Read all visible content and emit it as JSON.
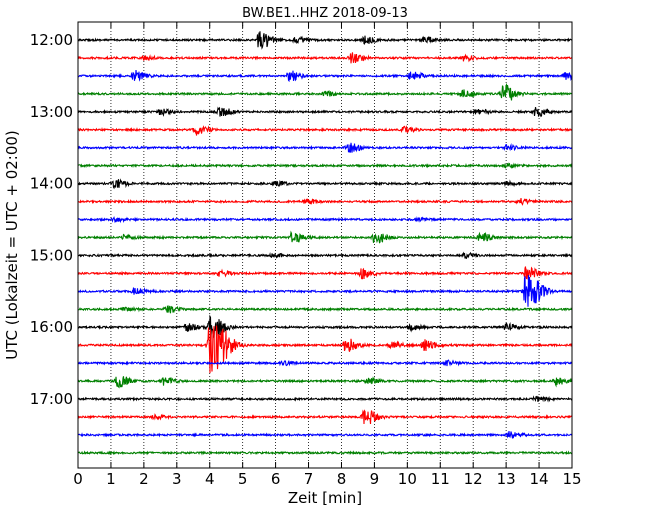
{
  "chart_data": {
    "type": "line",
    "title": "BW.BE1..HHZ 2018-09-13",
    "xlabel": "Zeit  [min]",
    "ylabel": "UTC (Lokalzeit = UTC + 02:00)",
    "xlim": [
      0,
      15
    ],
    "x_ticks": [
      "0",
      "1",
      "2",
      "3",
      "4",
      "5",
      "6",
      "7",
      "8",
      "9",
      "10",
      "11",
      "12",
      "13",
      "14",
      "15"
    ],
    "y_tick_labels": [
      "12:00",
      "13:00",
      "14:00",
      "15:00",
      "16:00",
      "17:00"
    ],
    "trace_colors": [
      "#000000",
      "#ff0000",
      "#0000ff",
      "#008000"
    ],
    "grid": "vertical dotted",
    "traces": [
      {
        "start": "12:00",
        "events": [
          [
            5.5,
            1.0
          ],
          [
            8.7,
            0.4
          ],
          [
            10.5,
            0.35
          ],
          [
            6.6,
            0.3
          ]
        ]
      },
      {
        "start": "12:15",
        "events": [
          [
            8.3,
            0.55
          ],
          [
            11.7,
            0.3
          ],
          [
            2.0,
            0.2
          ]
        ]
      },
      {
        "start": "12:30",
        "events": [
          [
            1.7,
            0.6
          ],
          [
            6.4,
            0.55
          ],
          [
            10.1,
            0.5
          ],
          [
            14.8,
            0.35
          ]
        ]
      },
      {
        "start": "12:45",
        "events": [
          [
            12.9,
            1.0
          ],
          [
            11.7,
            0.4
          ],
          [
            7.5,
            0.25
          ]
        ]
      },
      {
        "start": "13:00",
        "events": [
          [
            4.3,
            0.5
          ],
          [
            13.9,
            0.5
          ],
          [
            2.5,
            0.3
          ],
          [
            12.1,
            0.3
          ]
        ]
      },
      {
        "start": "13:15",
        "events": [
          [
            3.6,
            0.6
          ],
          [
            9.9,
            0.3
          ]
        ]
      },
      {
        "start": "13:30",
        "events": [
          [
            8.2,
            0.55
          ],
          [
            13.0,
            0.25
          ]
        ]
      },
      {
        "start": "13:45",
        "events": [
          [
            13.0,
            0.2
          ]
        ]
      },
      {
        "start": "14:00",
        "events": [
          [
            1.1,
            0.5
          ],
          [
            6.0,
            0.2
          ],
          [
            13.0,
            0.2
          ]
        ]
      },
      {
        "start": "14:15",
        "events": [
          [
            6.9,
            0.25
          ],
          [
            13.4,
            0.3
          ]
        ]
      },
      {
        "start": "14:30",
        "events": [
          [
            1.1,
            0.2
          ],
          [
            10.3,
            0.15
          ]
        ]
      },
      {
        "start": "14:45",
        "events": [
          [
            6.5,
            0.6
          ],
          [
            9.0,
            0.6
          ],
          [
            12.2,
            0.5
          ],
          [
            1.4,
            0.25
          ]
        ]
      },
      {
        "start": "15:00",
        "events": [
          [
            5.9,
            0.2
          ],
          [
            11.7,
            0.25
          ]
        ]
      },
      {
        "start": "15:15",
        "events": [
          [
            8.6,
            0.55
          ],
          [
            13.6,
            0.7
          ],
          [
            4.3,
            0.3
          ]
        ]
      },
      {
        "start": "15:30",
        "events": [
          [
            13.6,
            2.0
          ],
          [
            1.7,
            0.35
          ]
        ]
      },
      {
        "start": "15:45",
        "events": [
          [
            2.7,
            0.4
          ],
          [
            1.4,
            0.2
          ]
        ]
      },
      {
        "start": "16:00",
        "events": [
          [
            4.0,
            1.4
          ],
          [
            3.3,
            0.4
          ],
          [
            10.1,
            0.3
          ],
          [
            13.0,
            0.35
          ]
        ]
      },
      {
        "start": "16:15",
        "events": [
          [
            4.0,
            3.2
          ],
          [
            8.1,
            0.8
          ],
          [
            10.5,
            0.6
          ],
          [
            9.5,
            0.35
          ]
        ]
      },
      {
        "start": "16:30",
        "events": [
          [
            6.2,
            0.2
          ],
          [
            11.2,
            0.25
          ]
        ]
      },
      {
        "start": "16:45",
        "events": [
          [
            1.2,
            0.65
          ],
          [
            2.6,
            0.45
          ],
          [
            8.8,
            0.35
          ],
          [
            14.5,
            0.4
          ]
        ]
      },
      {
        "start": "17:00",
        "events": [
          [
            13.9,
            0.3
          ]
        ]
      },
      {
        "start": "17:15",
        "events": [
          [
            8.7,
            0.9
          ],
          [
            2.3,
            0.2
          ]
        ]
      },
      {
        "start": "17:30",
        "events": [
          [
            13.1,
            0.35
          ]
        ]
      },
      {
        "start": "17:45",
        "events": []
      }
    ]
  }
}
